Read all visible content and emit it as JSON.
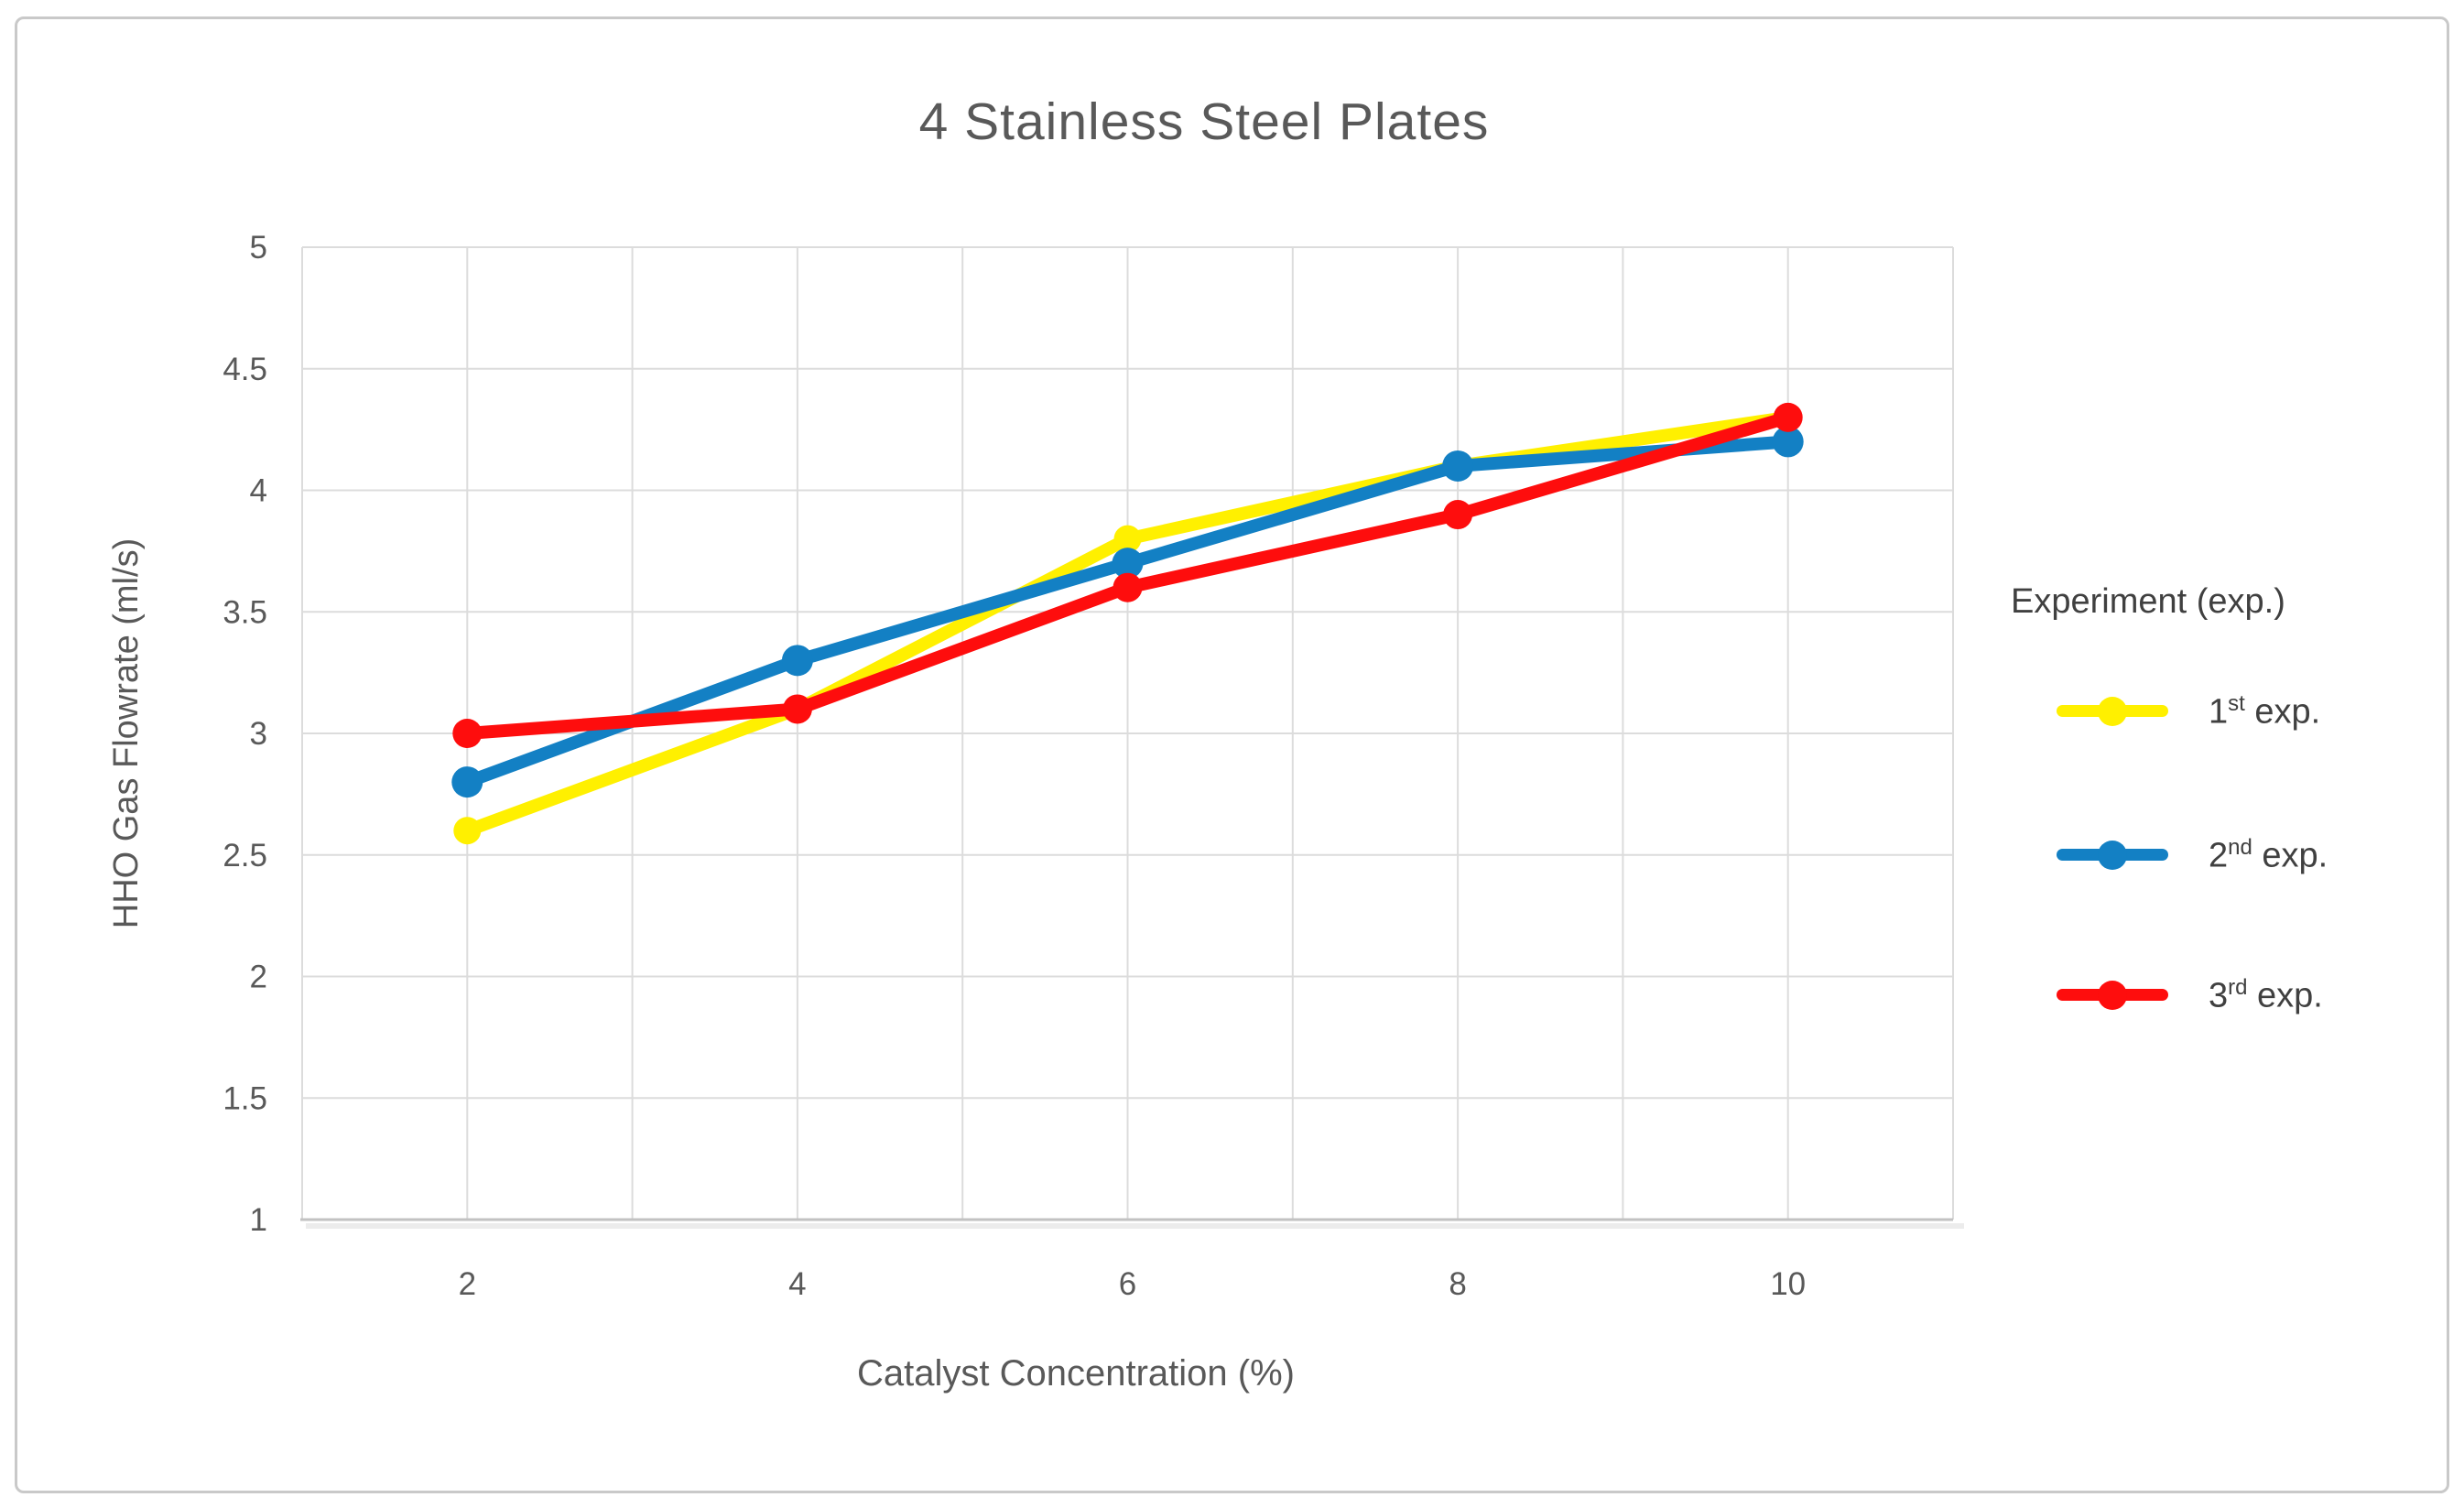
{
  "window": {
    "background": "#ffffff",
    "border_color": "#c9c9c9"
  },
  "chart_data": {
    "type": "line",
    "title": "4 Stainless Steel Plates",
    "xlabel": "Catalyst Concentration (%)",
    "ylabel": "HHO Gas Flowrate (ml/s)",
    "x": [
      2,
      4,
      6,
      8,
      10
    ],
    "series": [
      {
        "name": "1st exp.",
        "label_num": "1",
        "label_sup": "st",
        "label_rest": " exp.",
        "color": "#FFF000",
        "values": [
          2.6,
          3.1,
          3.8,
          4.1,
          4.3
        ]
      },
      {
        "name": "2nd exp.",
        "label_num": "2",
        "label_sup": "nd",
        "label_rest": " exp.",
        "color": "#1380C4",
        "values": [
          2.8,
          3.3,
          3.7,
          4.1,
          4.2
        ]
      },
      {
        "name": "3rd exp.",
        "label_num": "3",
        "label_sup": "rd",
        "label_rest": " exp.",
        "color": "#FE0D0D",
        "values": [
          3.0,
          3.1,
          3.6,
          3.9,
          4.3
        ]
      }
    ],
    "xlim": [
      1,
      11
    ],
    "ylim": [
      1,
      5
    ],
    "xticks": [
      2,
      4,
      6,
      8,
      10
    ],
    "yticks": [
      5,
      4.5,
      4,
      3.5,
      3,
      2.5,
      2,
      1.5,
      1
    ],
    "x_grid_step": 1,
    "y_grid_step": 0.5,
    "grid_on": true,
    "legend_position": "right",
    "legend_title": "Experiment (exp.)",
    "grid_color": "#DCDCDC",
    "axis_line_color": "#C2C2C2",
    "axis_shadow_color": "#ECECEC",
    "text_color": "#595959"
  }
}
